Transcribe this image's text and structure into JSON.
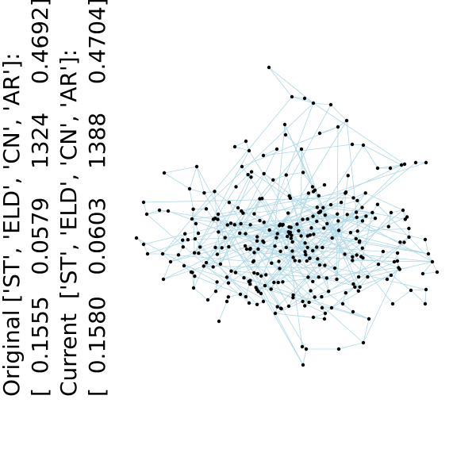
{
  "text_lines": [
    "Original ['ST', 'ELD', 'CN', 'AR']:",
    "[  0.1555   0.0579    1324    0.4692]",
    "Current  ['ST', 'ELD', 'CN', 'AR']:",
    "[  0.1580   0.0603    1388    0.4704]"
  ],
  "colors": {
    "edge": "#add8e6",
    "node": "#000000",
    "text": "#000000",
    "background": "#ffffff"
  }
}
